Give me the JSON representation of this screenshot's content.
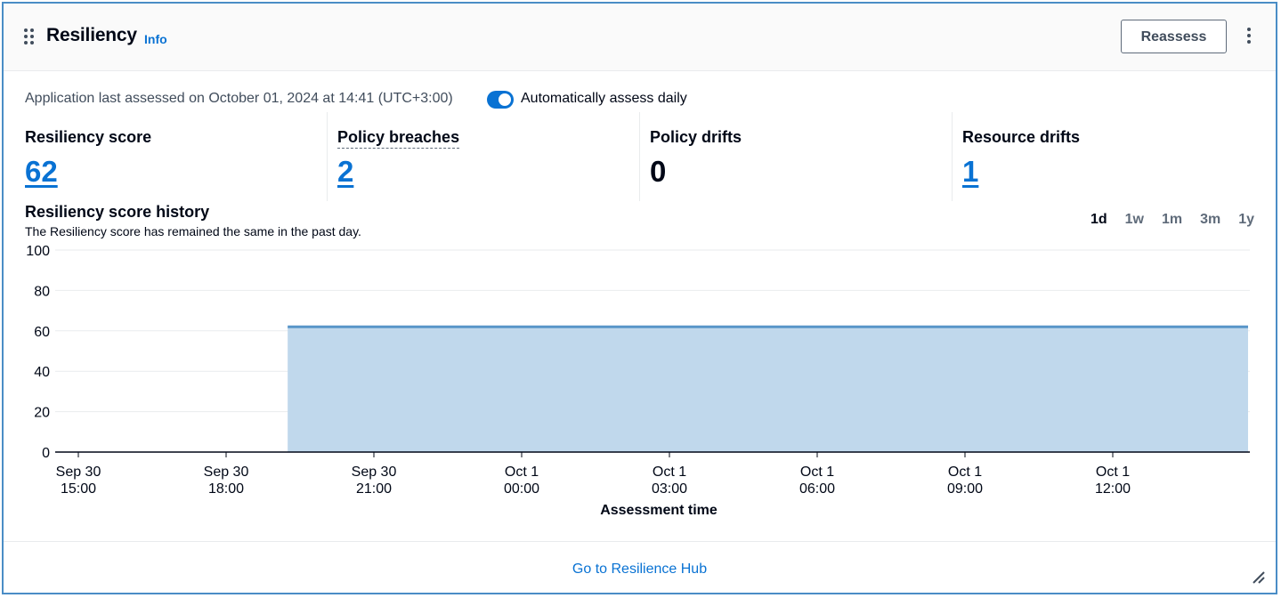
{
  "header": {
    "title": "Resiliency",
    "info_label": "Info",
    "reassess_label": "Reassess"
  },
  "status": {
    "last_assessed": "Application last assessed on October 01, 2024 at 14:41 (UTC+3:00)",
    "auto_assess_label": "Automatically assess daily",
    "auto_assess_enabled": true
  },
  "metrics": [
    {
      "label": "Resiliency score",
      "value": "62"
    },
    {
      "label": "Policy breaches",
      "value": "2"
    },
    {
      "label": "Policy drifts",
      "value": "0"
    },
    {
      "label": "Resource drifts",
      "value": "1"
    }
  ],
  "history": {
    "title": "Resiliency score history",
    "subtitle": "The Resiliency score has remained the same in the past day.",
    "ranges": [
      "1d",
      "1w",
      "1m",
      "3m",
      "1y"
    ],
    "selected_range": "1d"
  },
  "chart_data": {
    "type": "area",
    "xlabel": "Assessment time",
    "ylabel": "",
    "ylim": [
      0,
      100
    ],
    "y_ticks": [
      "0",
      "20",
      "40",
      "60",
      "80",
      "100"
    ],
    "x_ticks": [
      {
        "line1": "Sep 30",
        "line2": "15:00"
      },
      {
        "line1": "Sep 30",
        "line2": "18:00"
      },
      {
        "line1": "Sep 30",
        "line2": "21:00"
      },
      {
        "line1": "Oct 1",
        "line2": "00:00"
      },
      {
        "line1": "Oct 1",
        "line2": "03:00"
      },
      {
        "line1": "Oct 1",
        "line2": "06:00"
      },
      {
        "line1": "Oct 1",
        "line2": "09:00"
      },
      {
        "line1": "Oct 1",
        "line2": "12:00"
      }
    ],
    "x_start": "Sep 30 15:00",
    "x_end": "Oct 1 14:41",
    "series": [
      {
        "start": "Sep 30 19:15",
        "end": "Oct 1 14:41",
        "value": 62
      }
    ],
    "fill_color": "#c0d8ec",
    "line_color": "#5895c8",
    "grid": true
  },
  "footer": {
    "link_label": "Go to Resilience Hub"
  }
}
